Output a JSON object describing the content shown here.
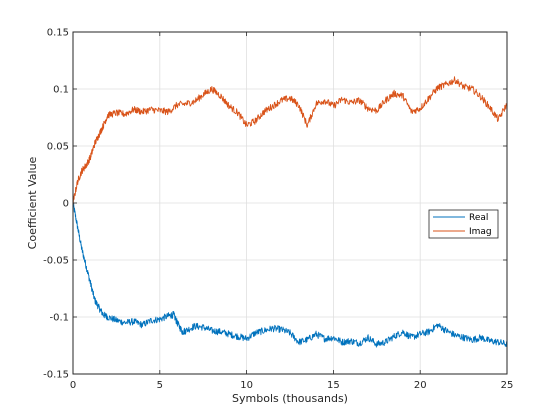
{
  "chart_data": {
    "type": "line",
    "title": "",
    "xlabel": "Symbols (thousands)",
    "ylabel": "Coefficient Value",
    "xlim": [
      0,
      25
    ],
    "ylim": [
      -0.15,
      0.15
    ],
    "x_ticks": [
      0,
      5,
      10,
      15,
      20,
      25
    ],
    "y_ticks": [
      -0.15,
      -0.1,
      -0.05,
      0,
      0.05,
      0.1,
      0.15
    ],
    "x_tick_labels": [
      "0",
      "5",
      "10",
      "15",
      "20",
      "25"
    ],
    "y_tick_labels": [
      "-0.15",
      "-0.1",
      "-0.05",
      "0",
      "0.05",
      "0.1",
      "0.15"
    ],
    "grid": true,
    "legend_position": "right",
    "series": [
      {
        "name": "Real",
        "color": "#0072BD",
        "x": [
          0,
          0.25,
          0.5,
          0.75,
          1,
          1.25,
          1.5,
          1.75,
          2,
          2.5,
          3,
          3.5,
          4,
          4.5,
          5,
          5.5,
          5.8,
          6,
          6.3,
          6.5,
          7,
          7.5,
          8,
          8.5,
          9,
          9.5,
          10,
          10.5,
          11,
          11.5,
          12,
          12.5,
          13,
          13.5,
          14,
          14.5,
          15,
          15.5,
          16,
          16.5,
          17,
          17.5,
          18,
          18.5,
          19,
          19.5,
          20,
          20.5,
          21,
          21.5,
          22,
          22.5,
          23,
          23.5,
          24,
          24.5,
          25
        ],
        "values": [
          0,
          -0.02,
          -0.04,
          -0.055,
          -0.07,
          -0.085,
          -0.092,
          -0.098,
          -0.1,
          -0.103,
          -0.105,
          -0.104,
          -0.107,
          -0.103,
          -0.102,
          -0.099,
          -0.098,
          -0.105,
          -0.113,
          -0.112,
          -0.108,
          -0.109,
          -0.112,
          -0.113,
          -0.115,
          -0.117,
          -0.119,
          -0.114,
          -0.112,
          -0.11,
          -0.111,
          -0.114,
          -0.122,
          -0.12,
          -0.115,
          -0.119,
          -0.118,
          -0.122,
          -0.121,
          -0.123,
          -0.118,
          -0.124,
          -0.122,
          -0.117,
          -0.113,
          -0.118,
          -0.115,
          -0.113,
          -0.107,
          -0.112,
          -0.116,
          -0.118,
          -0.12,
          -0.118,
          -0.121,
          -0.122,
          -0.124
        ]
      },
      {
        "name": "Imag",
        "color": "#D95319",
        "x": [
          0,
          0.25,
          0.5,
          0.75,
          1,
          1.25,
          1.5,
          1.75,
          2,
          2.5,
          3,
          3.5,
          4,
          4.5,
          5,
          5.5,
          6,
          6.5,
          7,
          7.5,
          8,
          8.5,
          9,
          9.5,
          10,
          10.5,
          11,
          11.5,
          12,
          12.5,
          13,
          13.5,
          14,
          14.5,
          15,
          15.5,
          16,
          16.5,
          17,
          17.5,
          18,
          18.5,
          19,
          19.5,
          20,
          20.5,
          21,
          21.5,
          22,
          22.5,
          23,
          23.5,
          24,
          24.5,
          25
        ],
        "values": [
          0,
          0.018,
          0.028,
          0.033,
          0.04,
          0.052,
          0.06,
          0.068,
          0.077,
          0.079,
          0.078,
          0.082,
          0.08,
          0.082,
          0.081,
          0.08,
          0.086,
          0.087,
          0.089,
          0.095,
          0.1,
          0.094,
          0.085,
          0.079,
          0.068,
          0.072,
          0.08,
          0.085,
          0.09,
          0.092,
          0.086,
          0.068,
          0.087,
          0.09,
          0.085,
          0.091,
          0.088,
          0.09,
          0.083,
          0.081,
          0.09,
          0.096,
          0.094,
          0.08,
          0.083,
          0.092,
          0.101,
          0.104,
          0.108,
          0.102,
          0.1,
          0.093,
          0.084,
          0.073,
          0.087
        ]
      }
    ]
  }
}
